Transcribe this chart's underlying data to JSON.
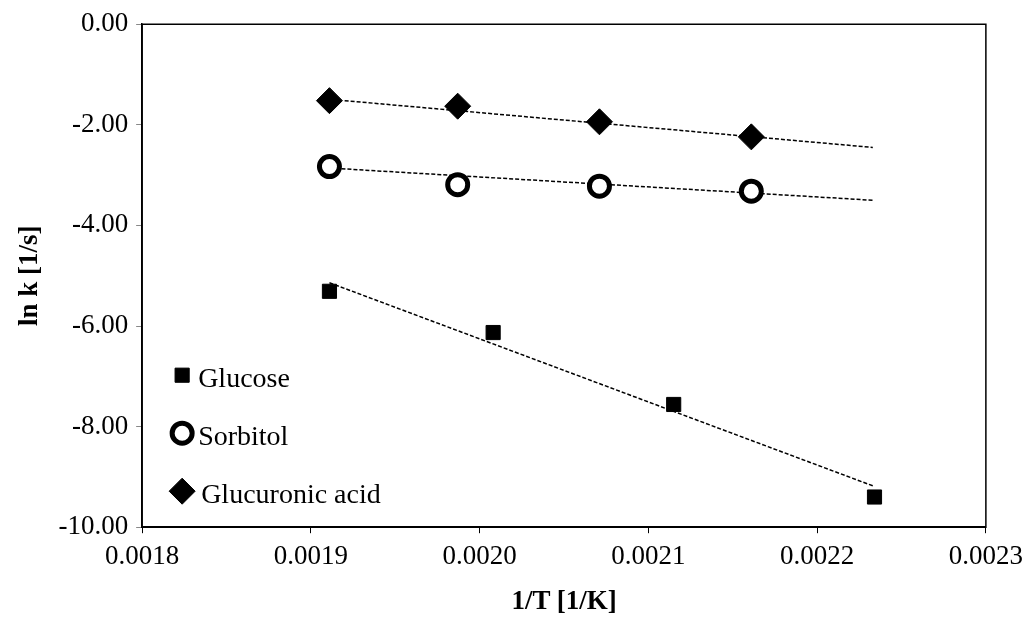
{
  "chart_data": {
    "type": "scatter",
    "xlabel": "1/T [1/K]",
    "ylabel": "ln k [1/s]",
    "xlim": [
      0.0018,
      0.0023
    ],
    "xticks": [
      0.0018,
      0.0019,
      {
        "value": 0.002,
        "label": "0.0020"
      },
      0.0021,
      0.0022,
      0.0023
    ],
    "ylim": [
      -10,
      0
    ],
    "yticks": [
      {
        "value": -10,
        "label": "-10.00"
      },
      {
        "value": -8,
        "label": "-8.00"
      },
      {
        "value": -6,
        "label": "-6.00"
      },
      {
        "value": -4,
        "label": "-4.00"
      },
      {
        "value": -2,
        "label": "-2.00"
      },
      {
        "value": 0,
        "label": "0.00"
      }
    ],
    "grid": false,
    "legend": "bottom left",
    "series": [
      {
        "name": "Glucose",
        "color": "#000000",
        "marker": "square",
        "x": [
          0.001911,
          0.002008,
          0.002115,
          0.002234
        ],
        "values": [
          -5.31,
          -6.13,
          -7.56,
          -9.4
        ]
      },
      {
        "name": "Sorbitol",
        "color": "#000000",
        "marker": "circle",
        "x": [
          0.001911,
          0.001987,
          0.002071,
          0.002161
        ],
        "values": [
          -2.83,
          -3.19,
          -3.22,
          -3.32
        ]
      },
      {
        "name": "Glucuronic acid",
        "color": "#000000",
        "marker": "diamond",
        "x": [
          0.001911,
          0.001987,
          0.002071,
          0.002161
        ],
        "values": [
          -1.52,
          -1.63,
          -1.94,
          -2.24
        ]
      },
      {
        "type": "line",
        "color": "#000000",
        "line_style": "dashed",
        "marker": "none",
        "x": [
          0.001911,
          0.002234
        ],
        "values": [
          -5.14,
          -9.19
        ]
      },
      {
        "type": "line",
        "color": "#000000",
        "line_style": "dashed",
        "marker": "none",
        "x": [
          0.001911,
          0.002233
        ],
        "values": [
          -2.86,
          -3.5
        ]
      },
      {
        "type": "line",
        "color": "#000000",
        "line_style": "dashed",
        "marker": "none",
        "x": [
          0.00192,
          0.002233
        ],
        "values": [
          -1.52,
          -2.45
        ]
      }
    ]
  }
}
